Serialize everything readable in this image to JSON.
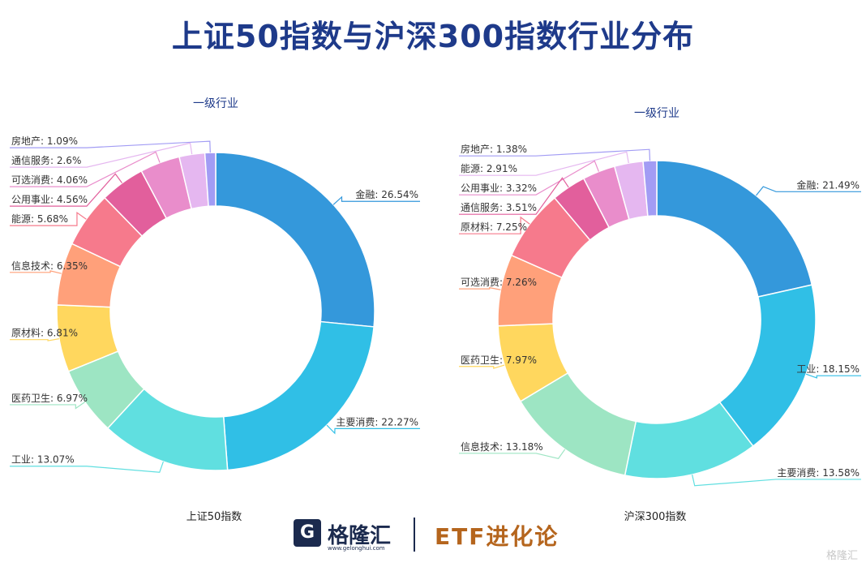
{
  "title": "上证50指数与沪深300指数行业分布",
  "footer": {
    "brand": "格隆汇",
    "url": "www.gelonghui.com",
    "partner": "ETF进化论",
    "watermark": "格隆汇"
  },
  "chart_data": [
    {
      "type": "pie",
      "title": "一级行业",
      "index_label": "上证50指数",
      "categories": [
        "金融",
        "主要消费",
        "工业",
        "医药卫生",
        "原材料",
        "信息技术",
        "能源",
        "公用事业",
        "可选消费",
        "通信服务",
        "房地产"
      ],
      "values": [
        26.54,
        22.27,
        13.07,
        6.97,
        6.81,
        6.35,
        5.68,
        4.56,
        4.06,
        2.6,
        1.09
      ],
      "unit": "%",
      "colors": [
        "#3498db",
        "#30bfe6",
        "#60dfe0",
        "#9de5c3",
        "#ffd75e",
        "#ffa07a",
        "#f67a8c",
        "#e25f9c",
        "#e98dcb",
        "#e5b7f0",
        "#a29cf4"
      ]
    },
    {
      "type": "pie",
      "title": "一级行业",
      "index_label": "沪深300指数",
      "categories": [
        "金融",
        "工业",
        "主要消费",
        "信息技术",
        "医药卫生",
        "可选消费",
        "原材料",
        "通信服务",
        "公用事业",
        "能源",
        "房地产"
      ],
      "values": [
        21.49,
        18.15,
        13.58,
        13.18,
        7.97,
        7.26,
        7.25,
        3.51,
        3.32,
        2.91,
        1.38
      ],
      "unit": "%",
      "colors": [
        "#3498db",
        "#30bfe6",
        "#60dfe0",
        "#9de5c3",
        "#ffd75e",
        "#ffa07a",
        "#f67a8c",
        "#e25f9c",
        "#e98dcb",
        "#e5b7f0",
        "#a29cf4"
      ]
    }
  ]
}
